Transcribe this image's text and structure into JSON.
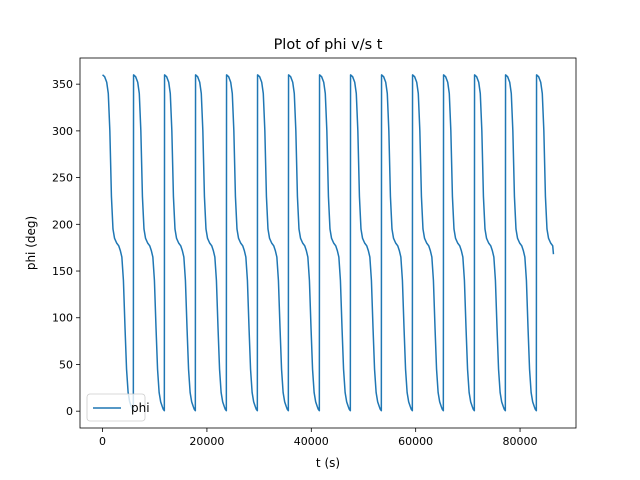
{
  "chart_data": {
    "type": "line",
    "title": "Plot of phi v/s t",
    "xlabel": "t (s)",
    "ylabel": "phi (deg)",
    "xlim": [
      -4320,
      90720
    ],
    "ylim": [
      -18,
      378
    ],
    "xticks": [
      0,
      20000,
      40000,
      60000,
      80000
    ],
    "xtick_labels": [
      "0",
      "20000",
      "40000",
      "60000",
      "80000"
    ],
    "yticks": [
      0,
      50,
      100,
      150,
      200,
      250,
      300,
      350
    ],
    "ytick_labels": [
      "0",
      "50",
      "100",
      "150",
      "200",
      "250",
      "300",
      "350"
    ],
    "grid": false,
    "legend_placement": "lower-left",
    "series": [
      {
        "name": "phi",
        "color": "#1f77b4",
        "start_t": 0,
        "period": 5940,
        "end_t": 86400,
        "end_phi": 168,
        "cycle_profile": {
          "t_offset": [
            0,
            400,
            800,
            1100,
            1400,
            1700,
            2000,
            2300,
            2700,
            3100,
            3400,
            3700,
            4000,
            4300,
            4600,
            4900,
            5200,
            5500,
            5700,
            5900,
            5940
          ],
          "phi": [
            360,
            358,
            352,
            340,
            300,
            230,
            195,
            185,
            180,
            177,
            172,
            165,
            140,
            90,
            45,
            20,
            10,
            5,
            2,
            0.5,
            360
          ]
        }
      }
    ]
  }
}
